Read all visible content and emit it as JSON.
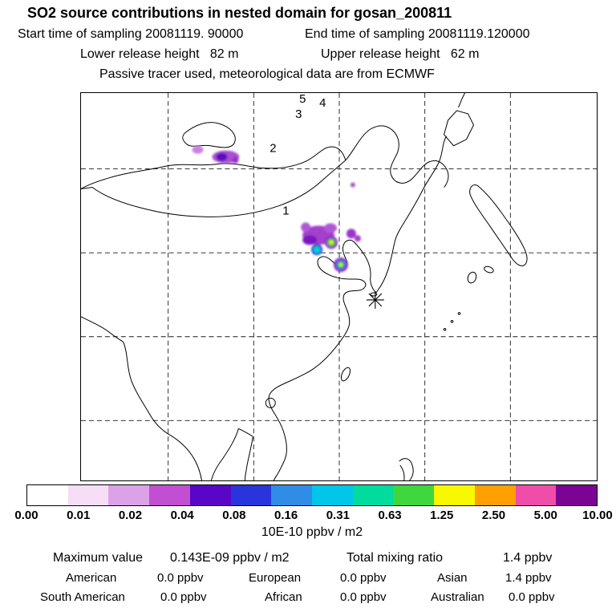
{
  "header": {
    "title": "SO2 source contributions in nested domain for gosan_200811",
    "line1_left": "Start time of sampling 20081119. 90000",
    "line1_right": "End time of sampling 20081119.120000",
    "line2_left": "Lower release height   82 m",
    "line2_right": "Upper release height   62 m",
    "line3": "Passive tracer used, meteorological data are from ECMWF"
  },
  "map": {
    "point_labels": [
      {
        "label": "1"
      },
      {
        "label": "2"
      },
      {
        "label": "3"
      },
      {
        "label": "4"
      },
      {
        "label": "5"
      }
    ],
    "station": "gosan"
  },
  "colorbar": {
    "ticks": [
      "0.00",
      "0.01",
      "0.02",
      "0.04",
      "0.08",
      "0.16",
      "0.31",
      "0.63",
      "1.25",
      "2.50",
      "5.00",
      "10.00"
    ],
    "colors": [
      "#ffffff",
      "#f6def6",
      "#dca2e8",
      "#c24ed2",
      "#5a06c8",
      "#2a34dc",
      "#2f8de8",
      "#00c6ea",
      "#00dc9e",
      "#3ed83e",
      "#f8f800",
      "#ffa000",
      "#f04caa",
      "#7c0494"
    ],
    "caption": "10E-10 ppbv / m2"
  },
  "stats": {
    "max_label": "Maximum value",
    "max_value": "0.143E-09 ppbv / m2",
    "total_label": "Total mixing ratio",
    "total_value": "1.4 ppbv",
    "regions": [
      {
        "name": "American",
        "value": "0.0 ppbv"
      },
      {
        "name": "European",
        "value": "0.0 ppbv"
      },
      {
        "name": "Asian",
        "value": "1.4 ppbv"
      },
      {
        "name": "South American",
        "value": "0.0 ppbv"
      },
      {
        "name": "African",
        "value": "0.0 ppbv"
      },
      {
        "name": "Australian",
        "value": "0.0 ppbv"
      }
    ]
  },
  "chart_data": {
    "type": "heatmap",
    "title": "SO2 source contributions in nested domain for gosan_200811",
    "units": "10E-10 ppbv / m2",
    "colorbar_levels": [
      0.0,
      0.01,
      0.02,
      0.04,
      0.08,
      0.16,
      0.31,
      0.63,
      1.25,
      2.5,
      5.0,
      10.0
    ],
    "maximum_value": "0.143E-09 ppbv / m2",
    "total_mixing_ratio_ppbv": 1.4,
    "region_mixing_ratio_ppbv": {
      "American": 0.0,
      "European": 0.0,
      "Asian": 1.4,
      "South American": 0.0,
      "African": 0.0,
      "Australian": 0.0
    },
    "sampling": {
      "start": "20081119. 90000",
      "end": "20081119.120000"
    },
    "release_height_m": {
      "lower": 82,
      "upper": 62
    },
    "note": "Passive tracer used, meteorological data are from ECMWF",
    "numbered_points_on_map": [
      "1",
      "2",
      "3",
      "4",
      "5"
    ],
    "legend_position": "bottom",
    "grid": "dashed lat/lon grid over East Asia map, station marker (asterisk) near Gosan"
  }
}
